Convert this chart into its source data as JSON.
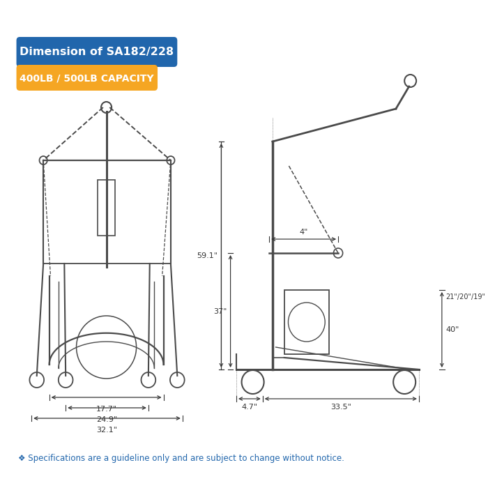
{
  "bg_color": "#ffffff",
  "title_box_color": "#2166ac",
  "title_text": "Dimension of SA182/228",
  "title_text_color": "#ffffff",
  "capacity_box_color": "#f5a623",
  "capacity_text": "400LB / 500LB CAPACITY",
  "capacity_text_color": "#ffffff",
  "spec_text": "❖ Specifications are a guideline only and are subject to change without notice.",
  "spec_text_color": "#2166ac",
  "line_color": "#4a4a4a",
  "dim_color": "#333333",
  "front_d1": "17.7\"",
  "front_d2": "24.9\"",
  "front_d3": "32.1\"",
  "side_h59": "59.1\"",
  "side_h37": "37\"",
  "side_w33": "33.5\"",
  "side_w4": "4\"",
  "side_h40": "40\"",
  "side_hleg": "21\"/20\"/19\"",
  "side_d47": "4.7\""
}
